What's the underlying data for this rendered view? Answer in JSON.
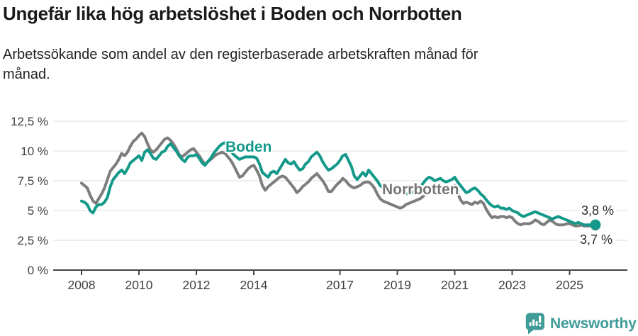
{
  "header": {
    "title": "Ungefär lika hög arbetslöshet i Boden och Norrbotten",
    "subtitle_lines": [
      "Arbetssökande som andel av den registerbaserade arbetskraften månad för",
      "månad."
    ]
  },
  "footer": {
    "brand": "Newsworthy",
    "logo_icon": "newsworthy-bar-chart-bubble"
  },
  "colors": {
    "boden_line": "#13998a",
    "norrbotten_line": "#7d7d7d",
    "grid": "#dcdcdc",
    "axis": "#444444",
    "tick_text": "#404040",
    "brand_teal": "#3f9b98"
  },
  "chart_data": {
    "type": "line",
    "title": "Ungefär lika hög arbetslöshet i Boden och Norrbotten",
    "subtitle": "Arbetssökande som andel av den registerbaserade arbetskraften månad för månad.",
    "xlabel": "",
    "ylabel": "",
    "unit": "%",
    "ylim": [
      0,
      12.5
    ],
    "grid": true,
    "legend_position": "inline-labels",
    "y_ticks": [
      {
        "value": 0,
        "label": "0 %"
      },
      {
        "value": 2.5,
        "label": "2,5 %"
      },
      {
        "value": 5,
        "label": "5 %"
      },
      {
        "value": 7.5,
        "label": "7,5 %"
      },
      {
        "value": 10,
        "label": "10 %"
      },
      {
        "value": 12.5,
        "label": "12,5 %"
      }
    ],
    "x_ticks": [
      {
        "value": 2008,
        "label": "2008"
      },
      {
        "value": 2010,
        "label": "2010"
      },
      {
        "value": 2012,
        "label": "2012"
      },
      {
        "value": 2014,
        "label": "2014"
      },
      {
        "value": 2017,
        "label": "2017"
      },
      {
        "value": 2019,
        "label": "2019"
      },
      {
        "value": 2021,
        "label": "2021"
      },
      {
        "value": 2023,
        "label": "2023"
      },
      {
        "value": 2025,
        "label": "2025"
      }
    ],
    "x_start": 2008.0,
    "x_step": 0.1,
    "series": [
      {
        "name": "Boden",
        "color": "#13998a",
        "end_label": "3,8 %",
        "end_value": 3.8,
        "values": [
          5.8,
          5.7,
          5.5,
          5.0,
          4.8,
          5.3,
          5.5,
          5.5,
          5.7,
          6.1,
          7.0,
          7.6,
          7.9,
          8.2,
          8.4,
          8.1,
          8.5,
          9.0,
          9.2,
          9.4,
          9.6,
          9.2,
          9.9,
          10.1,
          9.8,
          9.4,
          9.3,
          9.6,
          9.9,
          10.0,
          10.4,
          10.6,
          10.3,
          10.0,
          9.6,
          9.3,
          9.1,
          9.5,
          9.6,
          9.6,
          9.7,
          9.4,
          9.0,
          8.8,
          9.1,
          9.4,
          9.8,
          10.1,
          10.4,
          10.6,
          10.7,
          10.4,
          10.0,
          9.7,
          9.5,
          9.3,
          9.4,
          9.5,
          9.5,
          9.5,
          9.5,
          9.4,
          8.9,
          8.2,
          8.0,
          7.8,
          8.2,
          8.3,
          8.1,
          8.5,
          8.9,
          9.3,
          9.0,
          8.9,
          9.1,
          8.7,
          8.4,
          8.5,
          8.9,
          9.1,
          9.5,
          9.7,
          9.9,
          9.6,
          9.1,
          8.7,
          8.4,
          8.5,
          8.7,
          8.9,
          9.2,
          9.6,
          9.7,
          9.2,
          8.7,
          7.9,
          7.6,
          7.9,
          8.2,
          7.9,
          8.4,
          8.1,
          7.8,
          7.5,
          7.1,
          6.9,
          6.8,
          6.9,
          7.0,
          6.9,
          6.8,
          6.6,
          6.5,
          6.4,
          6.4,
          6.5,
          6.6,
          6.8,
          7.0,
          7.3,
          7.6,
          7.8,
          7.7,
          7.5,
          7.6,
          7.7,
          7.5,
          7.4,
          7.5,
          7.6,
          7.8,
          7.4,
          7.1,
          6.8,
          6.5,
          6.6,
          6.8,
          6.9,
          6.7,
          6.4,
          6.2,
          5.9,
          5.6,
          5.4,
          5.3,
          5.4,
          5.2,
          5.2,
          5.1,
          5.2,
          5.0,
          4.9,
          4.8,
          4.6,
          4.5,
          4.6,
          4.7,
          4.8,
          4.9,
          4.8,
          4.7,
          4.6,
          4.5,
          4.4,
          4.3,
          4.4,
          4.5,
          4.4,
          4.3,
          4.2,
          4.1,
          4.0,
          3.9,
          4.0,
          3.9,
          3.8,
          3.8,
          3.8,
          3.8,
          3.8
        ]
      },
      {
        "name": "Norrbotten",
        "color": "#7d7d7d",
        "end_label": "3,7 %",
        "end_value": 3.7,
        "values": [
          7.3,
          7.1,
          6.9,
          6.3,
          5.8,
          5.6,
          6.0,
          6.4,
          6.9,
          7.6,
          8.3,
          8.6,
          8.9,
          9.3,
          9.8,
          9.6,
          9.9,
          10.4,
          10.8,
          11.0,
          11.3,
          11.5,
          11.2,
          10.6,
          10.1,
          9.9,
          10.1,
          10.4,
          10.7,
          11.0,
          11.1,
          10.9,
          10.6,
          10.2,
          9.7,
          9.5,
          9.7,
          9.9,
          10.1,
          10.2,
          9.9,
          9.6,
          9.2,
          8.9,
          9.1,
          9.3,
          9.5,
          9.7,
          9.8,
          9.9,
          9.8,
          9.5,
          9.2,
          8.8,
          8.3,
          7.8,
          7.9,
          8.2,
          8.5,
          8.7,
          8.8,
          8.4,
          7.9,
          7.1,
          6.7,
          7.0,
          7.2,
          7.4,
          7.6,
          7.8,
          7.9,
          7.8,
          7.5,
          7.2,
          6.9,
          6.5,
          6.7,
          7.0,
          7.2,
          7.4,
          7.7,
          7.9,
          8.1,
          7.8,
          7.5,
          7.1,
          6.6,
          6.6,
          6.9,
          7.2,
          7.4,
          7.7,
          7.5,
          7.2,
          7.0,
          6.9,
          7.0,
          7.1,
          7.3,
          7.4,
          7.4,
          7.2,
          6.9,
          6.4,
          6.0,
          5.8,
          5.7,
          5.6,
          5.5,
          5.4,
          5.3,
          5.2,
          5.3,
          5.5,
          5.6,
          5.7,
          5.8,
          5.9,
          6.0,
          6.2,
          6.4,
          6.6,
          6.8,
          6.9,
          7.0,
          6.9,
          6.8,
          6.8,
          6.9,
          7.0,
          7.1,
          6.5,
          5.9,
          5.6,
          5.7,
          5.6,
          5.5,
          5.7,
          5.6,
          5.8,
          5.6,
          5.1,
          4.7,
          4.4,
          4.5,
          4.4,
          4.5,
          4.5,
          4.4,
          4.5,
          4.4,
          4.1,
          3.9,
          3.8,
          3.9,
          3.9,
          3.9,
          4.0,
          4.2,
          4.1,
          3.9,
          3.8,
          4.0,
          4.2,
          4.1,
          3.9,
          3.8,
          3.8,
          3.8,
          3.9,
          3.9,
          3.8,
          3.7,
          3.7,
          3.8,
          3.7,
          3.7,
          3.7,
          3.7,
          3.7
        ]
      }
    ]
  }
}
